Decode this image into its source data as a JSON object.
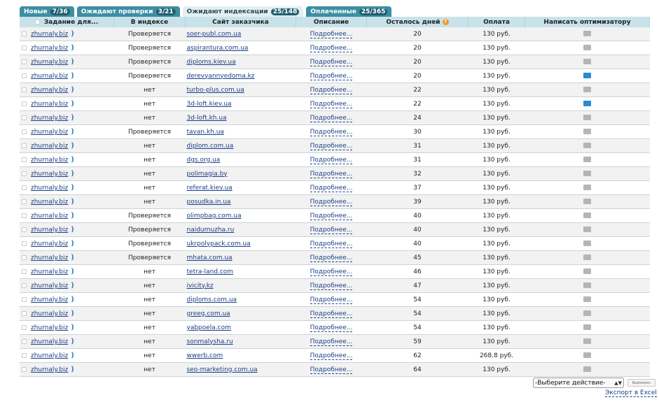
{
  "tabs": [
    {
      "label": "Новые",
      "count": "7/36"
    },
    {
      "label": "Ожидают проверки",
      "count": "3/21"
    },
    {
      "label": "Ожидают индексации",
      "count": "25/148",
      "active": true
    },
    {
      "label": "Оплаченные",
      "count": "25/365"
    }
  ],
  "columns": [
    "Задание для...",
    "В индексе",
    "Сайт заказчика",
    "Описание",
    "Осталось дней",
    "Оплата",
    "Написать оптимизатору"
  ],
  "help_icon": "?",
  "rows": [
    {
      "task": "zhurnaly.biz",
      "index": "Проверяется",
      "site": "soer-publ.com.ua",
      "desc": "Подробнее...",
      "days": "20",
      "pay": "130 руб.",
      "mail": "grey"
    },
    {
      "task": "zhurnaly.biz",
      "index": "Проверяется",
      "site": "aspirantura.com.ua",
      "desc": "Подробнее...",
      "days": "20",
      "pay": "130 руб.",
      "mail": "grey"
    },
    {
      "task": "zhurnaly.biz",
      "index": "Проверяется",
      "site": "diploms.kiev.ua",
      "desc": "Подробнее...",
      "days": "20",
      "pay": "130 руб.",
      "mail": "grey"
    },
    {
      "task": "zhurnaly.biz",
      "index": "Проверяется",
      "site": "derevyannyedoma.kz",
      "desc": "Подробнее...",
      "days": "20",
      "pay": "130 руб.",
      "mail": "blue"
    },
    {
      "task": "zhurnaly.biz",
      "index": "нет",
      "site": "turbo-plus.com.ua",
      "desc": "Подробнее...",
      "days": "22",
      "pay": "130 руб.",
      "mail": "grey"
    },
    {
      "task": "zhurnaly.biz",
      "index": "нет",
      "site": "3d-loft.kiev.ua",
      "desc": "Подробнее...",
      "days": "22",
      "pay": "130 руб.",
      "mail": "blue"
    },
    {
      "task": "zhurnaly.biz",
      "index": "нет",
      "site": "3d-loft.kh.ua",
      "desc": "Подробнее...",
      "days": "24",
      "pay": "130 руб.",
      "mail": "grey"
    },
    {
      "task": "zhurnaly.biz",
      "index": "Проверяется",
      "site": "tavan.kh.ua",
      "desc": "Подробнее...",
      "days": "30",
      "pay": "130 руб.",
      "mail": "grey"
    },
    {
      "task": "zhurnaly.biz",
      "index": "нет",
      "site": "diplom.com.ua",
      "desc": "Подробнее...",
      "days": "31",
      "pay": "130 руб.",
      "mail": "grey"
    },
    {
      "task": "zhurnaly.biz",
      "index": "нет",
      "site": "dgs.org.ua",
      "desc": "Подробнее...",
      "days": "31",
      "pay": "130 руб.",
      "mail": "grey"
    },
    {
      "task": "zhurnaly.biz",
      "index": "нет",
      "site": "polimagia.by",
      "desc": "Подробнее...",
      "days": "32",
      "pay": "130 руб.",
      "mail": "grey"
    },
    {
      "task": "zhurnaly.biz",
      "index": "нет",
      "site": "referat.kiev.ua",
      "desc": "Подробнее...",
      "days": "37",
      "pay": "130 руб.",
      "mail": "grey"
    },
    {
      "task": "zhurnaly.biz",
      "index": "нет",
      "site": "posudka.in.ua",
      "desc": "Подробнее...",
      "days": "39",
      "pay": "130 руб.",
      "mail": "grey"
    },
    {
      "task": "zhurnaly.biz",
      "index": "Проверяется",
      "site": "olimpbag.com.ua",
      "desc": "Подробнее...",
      "days": "40",
      "pay": "130 руб.",
      "mail": "grey"
    },
    {
      "task": "zhurnaly.biz",
      "index": "Проверяется",
      "site": "naidumuzha.ru",
      "desc": "Подробнее...",
      "days": "40",
      "pay": "130 руб.",
      "mail": "grey"
    },
    {
      "task": "zhurnaly.biz",
      "index": "Проверяется",
      "site": "ukrpolypack.com.ua",
      "desc": "Подробнее...",
      "days": "40",
      "pay": "130 руб.",
      "mail": "grey"
    },
    {
      "task": "zhurnaly.biz",
      "index": "Проверяется",
      "site": "mhata.com.ua",
      "desc": "Подробнее...",
      "days": "45",
      "pay": "130 руб.",
      "mail": "grey"
    },
    {
      "task": "zhurnaly.biz",
      "index": "нет",
      "site": "tetra-land.com",
      "desc": "Подробнее...",
      "days": "46",
      "pay": "130 руб.",
      "mail": "grey"
    },
    {
      "task": "zhurnaly.biz",
      "index": "нет",
      "site": "ivicity.kz",
      "desc": "Подробнее...",
      "days": "47",
      "pay": "130 руб.",
      "mail": "grey"
    },
    {
      "task": "zhurnaly.biz",
      "index": "нет",
      "site": "diploms.com.ua",
      "desc": "Подробнее...",
      "days": "54",
      "pay": "130 руб.",
      "mail": "grey"
    },
    {
      "task": "zhurnaly.biz",
      "index": "нет",
      "site": "greeg.com.ua",
      "desc": "Подробнее...",
      "days": "54",
      "pay": "130 руб.",
      "mail": "grey"
    },
    {
      "task": "zhurnaly.biz",
      "index": "нет",
      "site": "yabpoela.com",
      "desc": "Подробнее...",
      "days": "54",
      "pay": "130 руб.",
      "mail": "grey"
    },
    {
      "task": "zhurnaly.biz",
      "index": "нет",
      "site": "sonmalysha.ru",
      "desc": "Подробнее...",
      "days": "59",
      "pay": "130 руб.",
      "mail": "grey"
    },
    {
      "task": "zhurnaly.biz",
      "index": "нет",
      "site": "wwerb.com",
      "desc": "Подробнее...",
      "days": "62",
      "pay": "268.8 руб.",
      "mail": "grey"
    },
    {
      "task": "zhurnaly.biz",
      "index": "нет",
      "site": "seo-marketing.com.ua",
      "desc": "Подробнее...",
      "days": "64",
      "pay": "130 руб.",
      "mail": "grey"
    }
  ],
  "action_select": "-Выберите действие-",
  "execute_button": "Выполнить",
  "export_link": "Экспорт в Excel"
}
